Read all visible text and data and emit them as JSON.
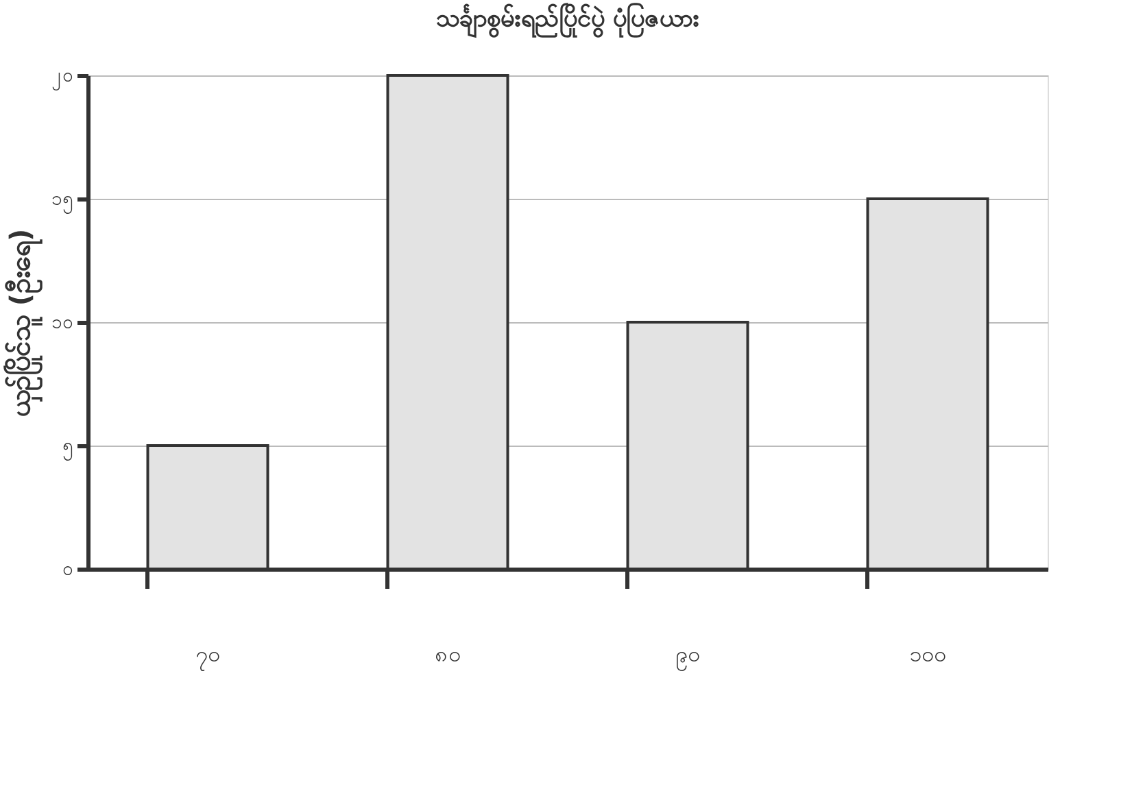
{
  "chart_data": {
    "type": "bar",
    "title": "သင်္ချာစွမ်းရည်ပြိုင်ပွဲ ပုံပြဇယား",
    "ylabel": "ယှဉ်ပြိုင်သူ (ဦးရေ)",
    "categories": [
      "၇၀",
      "၈၀",
      "၉၀",
      "၁၀၀"
    ],
    "values": [
      5,
      20,
      10,
      15
    ],
    "color": "#e3e3e3",
    "ylim": [
      0,
      20
    ],
    "yticks": [
      {
        "value": 0,
        "label": "၀"
      },
      {
        "value": 5,
        "label": "၅"
      },
      {
        "value": 10,
        "label": "၁၀"
      },
      {
        "value": 15,
        "label": "၁၅"
      },
      {
        "value": 20,
        "label": "၂၀"
      }
    ],
    "grid": "y"
  }
}
